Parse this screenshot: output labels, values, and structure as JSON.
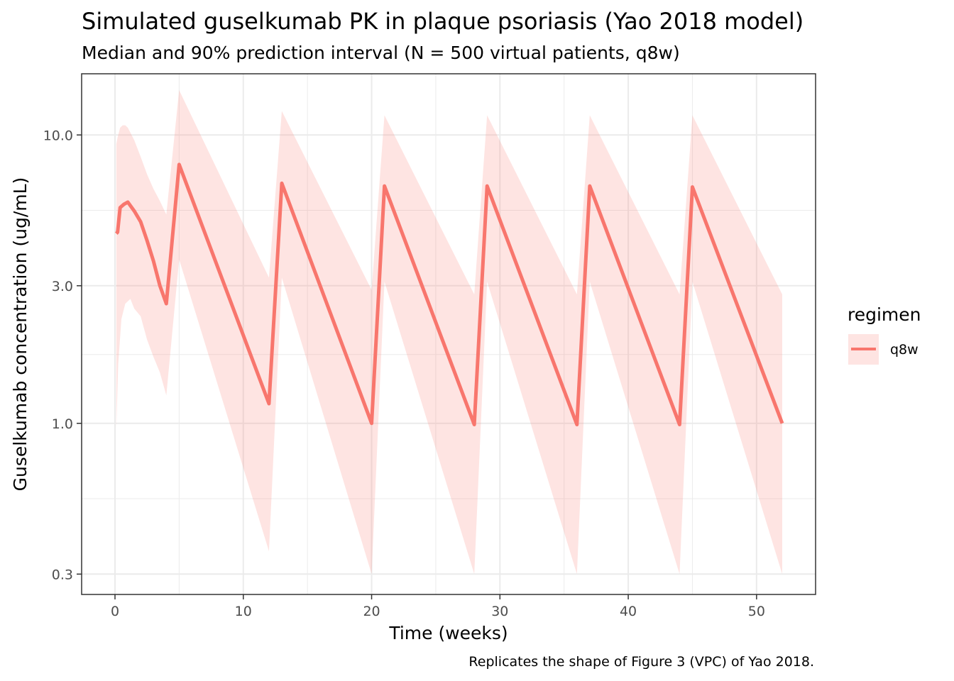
{
  "chart_data": {
    "type": "line",
    "title": "Simulated guselkumab PK in plaque psoriasis (Yao 2018 model)",
    "subtitle": "Median and 90% prediction interval (N = 500 virtual patients, q8w)",
    "xlabel": "Time (weeks)",
    "ylabel": "Guselkumab concentration (ug/mL)",
    "caption": "Replicates the shape of Figure 3 (VPC) of Yao 2018.",
    "x_scale": "linear",
    "y_scale": "log10",
    "xlim": [
      -2.6,
      54.6
    ],
    "ylim": [
      0.255,
      16.3
    ],
    "x_ticks": [
      0,
      10,
      20,
      30,
      40,
      50
    ],
    "x_tick_labels": [
      "0",
      "10",
      "20",
      "30",
      "40",
      "50"
    ],
    "y_ticks": [
      0.3,
      1.0,
      3.0,
      10.0
    ],
    "y_tick_labels": [
      "0.3",
      "1.0",
      "3.0",
      "10.0"
    ],
    "legend": {
      "title": "regimen",
      "entries": [
        "q8w"
      ],
      "position": "right"
    },
    "colors": {
      "line": "#f8766d",
      "band": "#f8766d",
      "band_opacity": 0.2,
      "grid": "#ebebeb",
      "panel_border": "#333333"
    },
    "series": [
      {
        "name": "q8w",
        "median": {
          "x": [
            0.1,
            0.2,
            0.4,
            0.7,
            1.0,
            1.5,
            2.0,
            2.5,
            3.0,
            3.5,
            4.0,
            5.0,
            12.0,
            13.0,
            20.0,
            21.0,
            28.0,
            29.0,
            36.0,
            37.0,
            44.0,
            45.0,
            52.0
          ],
          "y": [
            4.55,
            4.6,
            5.6,
            5.75,
            5.85,
            5.45,
            5.0,
            4.3,
            3.65,
            3.0,
            2.6,
            7.9,
            1.17,
            6.8,
            1.0,
            6.65,
            0.99,
            6.65,
            0.99,
            6.65,
            0.99,
            6.6,
            1.0
          ]
        },
        "lower_5": {
          "x": [
            0.1,
            0.25,
            0.5,
            0.8,
            1.0,
            1.2,
            1.5,
            2.0,
            2.5,
            3.0,
            3.5,
            4.0,
            5.0,
            12.0,
            13.0,
            20.0,
            21.0,
            28.0,
            29.0,
            36.0,
            37.0,
            44.0,
            45.0,
            52.0
          ],
          "y": [
            0.95,
            1.6,
            2.3,
            2.6,
            2.65,
            2.7,
            2.5,
            2.35,
            1.95,
            1.7,
            1.5,
            1.25,
            3.7,
            0.36,
            3.2,
            0.3,
            3.1,
            0.3,
            3.1,
            0.3,
            3.1,
            0.3,
            3.1,
            0.3
          ]
        },
        "upper_95": {
          "x": [
            0.1,
            0.2,
            0.4,
            0.6,
            0.8,
            1.0,
            1.5,
            2.0,
            2.5,
            3.0,
            3.5,
            4.0,
            5.0,
            12.0,
            13.0,
            20.0,
            21.0,
            28.0,
            29.0,
            36.0,
            37.0,
            44.0,
            45.0,
            52.0
          ],
          "y": [
            9.3,
            9.8,
            10.6,
            10.8,
            10.8,
            10.6,
            9.6,
            8.4,
            7.3,
            6.5,
            5.9,
            5.3,
            14.3,
            3.2,
            12.1,
            2.9,
            11.7,
            2.8,
            11.7,
            2.8,
            11.7,
            2.8,
            11.7,
            2.8
          ]
        }
      }
    ]
  }
}
